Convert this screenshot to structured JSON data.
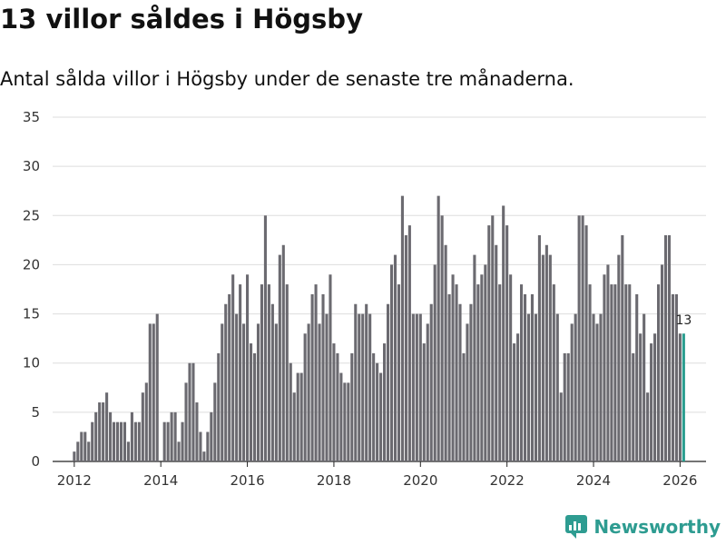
{
  "title": "13 villor såldes i Högsby",
  "subtitle": "Antal sålda villor i Högsby under de senaste tre månaderna.",
  "brand": "Newsworthy",
  "colors": {
    "bar": "#6b6a70",
    "highlight": "#2a9d8f",
    "grid": "#dddddd",
    "brand": "#2e9c91"
  },
  "chart_data": {
    "type": "bar",
    "title": "13 villor såldes i Högsby",
    "xlabel": "",
    "ylabel": "",
    "ylim": [
      0,
      35
    ],
    "yticks": [
      0,
      5,
      10,
      15,
      20,
      25,
      30,
      35
    ],
    "xlim": [
      2011.5,
      2026.6
    ],
    "xticks": [
      2012,
      2014,
      2016,
      2018,
      2020,
      2022,
      2024,
      2026
    ],
    "start": 2012.0,
    "step": 0.083333,
    "values": [
      1,
      2,
      3,
      3,
      2,
      4,
      5,
      6,
      6,
      7,
      5,
      4,
      4,
      4,
      4,
      2,
      5,
      4,
      4,
      7,
      8,
      14,
      14,
      15,
      0,
      4,
      4,
      5,
      5,
      2,
      4,
      8,
      10,
      10,
      6,
      3,
      1,
      3,
      5,
      8,
      11,
      14,
      16,
      17,
      19,
      15,
      18,
      14,
      19,
      12,
      11,
      14,
      18,
      25,
      18,
      16,
      14,
      21,
      22,
      18,
      10,
      7,
      9,
      9,
      13,
      14,
      17,
      18,
      14,
      17,
      15,
      19,
      12,
      11,
      9,
      8,
      8,
      11,
      16,
      15,
      15,
      16,
      15,
      11,
      10,
      9,
      12,
      16,
      20,
      21,
      18,
      27,
      23,
      24,
      15,
      15,
      15,
      12,
      14,
      16,
      20,
      27,
      25,
      22,
      17,
      19,
      18,
      16,
      11,
      14,
      16,
      21,
      18,
      19,
      20,
      24,
      25,
      22,
      18,
      26,
      24,
      19,
      12,
      13,
      18,
      17,
      15,
      17,
      15,
      23,
      21,
      22,
      21,
      18,
      15,
      7,
      11,
      11,
      14,
      15,
      25,
      25,
      24,
      18,
      15,
      14,
      15,
      19,
      20,
      18,
      18,
      21,
      23,
      18,
      18,
      11,
      17,
      13,
      15,
      7,
      12,
      13,
      18,
      20,
      23,
      23,
      17,
      17,
      13,
      13
    ],
    "highlight_last": true,
    "annotation": {
      "label": "13"
    }
  }
}
